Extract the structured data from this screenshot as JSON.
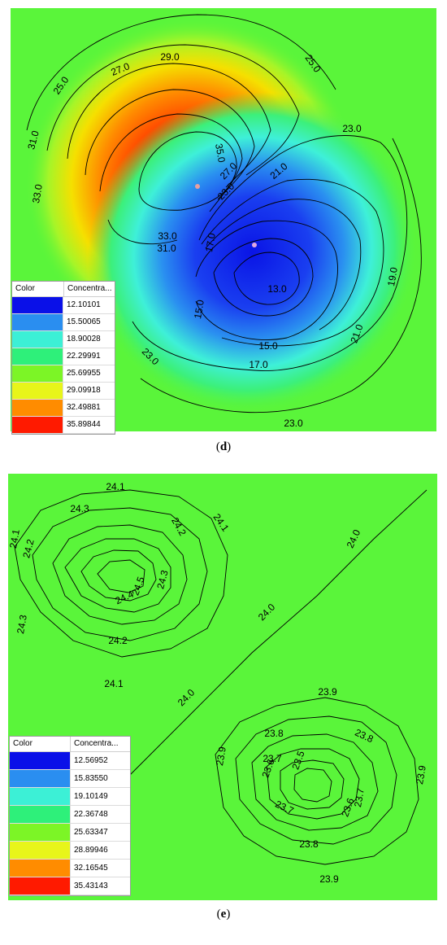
{
  "chart_data": [
    {
      "type": "heatmap",
      "panel": "d",
      "colorbar_header": {
        "color": "Color",
        "value": "Concentra..."
      },
      "legend": [
        {
          "color": "#0a10e8",
          "value": "12.10101"
        },
        {
          "color": "#2a8ef0",
          "value": "15.50065"
        },
        {
          "color": "#3cf0d6",
          "value": "18.90028"
        },
        {
          "color": "#2ef07a",
          "value": "22.29991"
        },
        {
          "color": "#7cf526",
          "value": "25.69955"
        },
        {
          "color": "#e8f51a",
          "value": "29.09918"
        },
        {
          "color": "#ff8c00",
          "value": "32.49881"
        },
        {
          "color": "#ff1a00",
          "value": "35.89844"
        }
      ],
      "contour_labels": [
        "25.0",
        "27.0",
        "29.0",
        "25.0",
        "31.0",
        "35.0",
        "33.0",
        "33.0",
        "31.0",
        "27.0",
        "23.0",
        "21.0",
        "23.0",
        "17.0",
        "13.0",
        "19.0",
        "15.0",
        "15.0",
        "21.0",
        "17.0",
        "23.0",
        "23.0"
      ]
    },
    {
      "type": "heatmap",
      "panel": "e",
      "colorbar_header": {
        "color": "Color",
        "value": "Concentra..."
      },
      "legend": [
        {
          "color": "#0a10e8",
          "value": "12.56952"
        },
        {
          "color": "#2a8ef0",
          "value": "15.83550"
        },
        {
          "color": "#3cf0d6",
          "value": "19.10149"
        },
        {
          "color": "#2ef07a",
          "value": "22.36748"
        },
        {
          "color": "#7cf526",
          "value": "25.63347"
        },
        {
          "color": "#e8f51a",
          "value": "28.89946"
        },
        {
          "color": "#ff8c00",
          "value": "32.16545"
        },
        {
          "color": "#ff1a00",
          "value": "35.43143"
        }
      ],
      "contour_labels": [
        "24.1",
        "24.1",
        "24.1",
        "24.2",
        "24.3",
        "24.2",
        "24.5",
        "24.4",
        "24.3",
        "24.3",
        "24.2",
        "24.1",
        "24.0",
        "24.0",
        "24.0",
        "23.9",
        "23.8",
        "23.8",
        "23.7",
        "23.6",
        "23.5",
        "23.9",
        "23.9",
        "23.6",
        "23.7",
        "23.7",
        "23.8",
        "23.9"
      ]
    }
  ],
  "captions": {
    "d": "d",
    "e": "e"
  },
  "field_colors": {
    "background": "#5af53a"
  }
}
